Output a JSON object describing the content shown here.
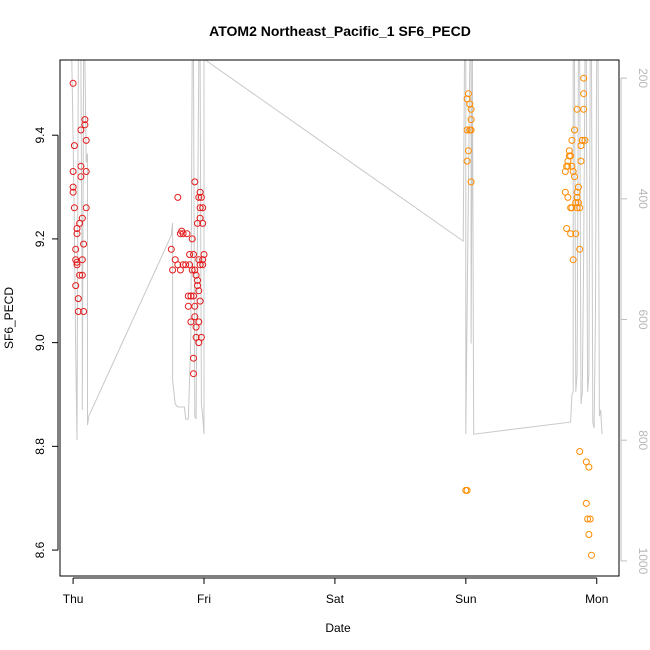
{
  "chart_data": {
    "type": "scatter",
    "title": "ATOM2 Northeast_Pacific_1 SF6_PECD",
    "xlabel": "Date",
    "ylabel": "SF6_PECD",
    "x_ticks": [
      "Thu",
      "Fri",
      "Sat",
      "Sun",
      "Mon"
    ],
    "xlim": [
      -0.1,
      4.17
    ],
    "ylim": [
      8.55,
      9.545
    ],
    "y_ticks": [
      8.6,
      8.8,
      9.0,
      9.2,
      9.4
    ],
    "y_tick_labels": [
      "8.6",
      "8.8",
      "9.0",
      "9.2",
      "9.4"
    ],
    "y2_axis": {
      "color": "#bebebe",
      "lim": [
        1025,
        170
      ],
      "ticks": [
        200,
        400,
        600,
        800,
        1000
      ],
      "tick_labels": [
        "200",
        "400",
        "600",
        "800",
        "1000"
      ]
    },
    "colors": {
      "series1": "#e31a1c",
      "series2": "#ff8c00",
      "line": "#c8c8c8"
    },
    "series": [
      {
        "values": [
          [
            0.0,
            9.5
          ],
          [
            0.0,
            9.33
          ],
          [
            0.0,
            9.3
          ],
          [
            0.0,
            9.29
          ],
          [
            0.01,
            9.38
          ],
          [
            0.01,
            9.26
          ],
          [
            0.02,
            9.18
          ],
          [
            0.02,
            9.16
          ],
          [
            0.03,
            9.155
          ],
          [
            0.03,
            9.15
          ],
          [
            0.02,
            9.11
          ],
          [
            0.03,
            9.22
          ],
          [
            0.03,
            9.21
          ],
          [
            0.04,
            9.085
          ],
          [
            0.04,
            9.06
          ],
          [
            0.05,
            9.13
          ],
          [
            0.05,
            9.23
          ],
          [
            0.06,
            9.32
          ],
          [
            0.06,
            9.34
          ],
          [
            0.06,
            9.41
          ],
          [
            0.07,
            9.16
          ],
          [
            0.07,
            9.13
          ],
          [
            0.07,
            9.24
          ],
          [
            0.08,
            9.19
          ],
          [
            0.08,
            9.06
          ],
          [
            0.09,
            9.43
          ],
          [
            0.09,
            9.42
          ],
          [
            0.1,
            9.39
          ],
          [
            0.1,
            9.33
          ],
          [
            0.1,
            9.26
          ],
          [
            0.75,
            9.18
          ],
          [
            0.76,
            9.14
          ],
          [
            0.78,
            9.16
          ],
          [
            0.8,
            9.28
          ],
          [
            0.8,
            9.15
          ],
          [
            0.82,
            9.21
          ],
          [
            0.82,
            9.14
          ],
          [
            0.83,
            9.215
          ],
          [
            0.84,
            9.21
          ],
          [
            0.84,
            9.15
          ],
          [
            0.86,
            9.15
          ],
          [
            0.87,
            9.21
          ],
          [
            0.88,
            9.09
          ],
          [
            0.88,
            9.07
          ],
          [
            0.89,
            9.17
          ],
          [
            0.89,
            9.15
          ],
          [
            0.9,
            9.09
          ],
          [
            0.9,
            9.04
          ],
          [
            0.91,
            9.2
          ],
          [
            0.91,
            9.14
          ],
          [
            0.92,
            9.17
          ],
          [
            0.92,
            9.09
          ],
          [
            0.92,
            8.97
          ],
          [
            0.92,
            8.94
          ],
          [
            0.93,
            9.31
          ],
          [
            0.93,
            9.14
          ],
          [
            0.93,
            9.07
          ],
          [
            0.93,
            9.05
          ],
          [
            0.94,
            9.13
          ],
          [
            0.94,
            9.03
          ],
          [
            0.94,
            9.01
          ],
          [
            0.95,
            9.23
          ],
          [
            0.95,
            9.12
          ],
          [
            0.95,
            9.11
          ],
          [
            0.96,
            9.28
          ],
          [
            0.96,
            9.16
          ],
          [
            0.96,
            9.1
          ],
          [
            0.96,
            9.04
          ],
          [
            0.96,
            9.0
          ],
          [
            0.97,
            9.29
          ],
          [
            0.97,
            9.26
          ],
          [
            0.97,
            9.24
          ],
          [
            0.97,
            9.15
          ],
          [
            0.97,
            9.08
          ],
          [
            0.98,
            9.28
          ],
          [
            0.98,
            9.01
          ],
          [
            0.99,
            9.26
          ],
          [
            0.99,
            9.23
          ],
          [
            0.99,
            9.16
          ],
          [
            0.99,
            9.15
          ],
          [
            1.0,
            9.17
          ]
        ]
      },
      {
        "values": [
          [
            3.0,
            8.715
          ],
          [
            3.01,
            8.715
          ],
          [
            3.01,
            9.47
          ],
          [
            3.01,
            9.41
          ],
          [
            3.01,
            9.35
          ],
          [
            3.02,
            9.48
          ],
          [
            3.02,
            9.37
          ],
          [
            3.03,
            9.46
          ],
          [
            3.03,
            9.41
          ],
          [
            3.04,
            9.45
          ],
          [
            3.04,
            9.43
          ],
          [
            3.04,
            9.41
          ],
          [
            3.04,
            9.31
          ],
          [
            3.76,
            9.29
          ],
          [
            3.76,
            9.33
          ],
          [
            3.77,
            9.34
          ],
          [
            3.77,
            9.22
          ],
          [
            3.78,
            9.34
          ],
          [
            3.78,
            9.28
          ],
          [
            3.78,
            9.35
          ],
          [
            3.79,
            9.36
          ],
          [
            3.79,
            9.37
          ],
          [
            3.8,
            9.36
          ],
          [
            3.8,
            9.26
          ],
          [
            3.8,
            9.21
          ],
          [
            3.81,
            9.34
          ],
          [
            3.81,
            9.39
          ],
          [
            3.81,
            9.26
          ],
          [
            3.82,
            9.33
          ],
          [
            3.82,
            9.16
          ],
          [
            3.83,
            9.41
          ],
          [
            3.83,
            9.32
          ],
          [
            3.84,
            9.27
          ],
          [
            3.84,
            9.27
          ],
          [
            3.84,
            9.21
          ],
          [
            3.85,
            9.29
          ],
          [
            3.85,
            9.28
          ],
          [
            3.85,
            9.26
          ],
          [
            3.85,
            9.45
          ],
          [
            3.86,
            9.3
          ],
          [
            3.86,
            9.27
          ],
          [
            3.87,
            9.26
          ],
          [
            3.87,
            9.18
          ],
          [
            3.87,
            8.79
          ],
          [
            3.88,
            9.35
          ],
          [
            3.88,
            9.38
          ],
          [
            3.89,
            9.39
          ],
          [
            3.89,
            9.39
          ],
          [
            3.9,
            9.45
          ],
          [
            3.9,
            9.51
          ],
          [
            3.9,
            9.48
          ],
          [
            3.91,
            9.39
          ],
          [
            3.92,
            8.77
          ],
          [
            3.92,
            8.69
          ],
          [
            3.93,
            8.66
          ],
          [
            3.94,
            8.76
          ],
          [
            3.94,
            8.63
          ],
          [
            3.95,
            8.66
          ],
          [
            3.96,
            8.59
          ]
        ]
      }
    ],
    "line_y2": [
      [
        -0.01,
        150
      ],
      [
        0.0,
        300
      ],
      [
        0.01,
        450
      ],
      [
        0.02,
        650
      ],
      [
        0.03,
        800
      ],
      [
        0.04,
        150
      ],
      [
        0.06,
        150
      ],
      [
        0.07,
        620
      ],
      [
        0.07,
        750
      ],
      [
        0.08,
        150
      ],
      [
        0.09,
        150
      ],
      [
        0.1,
        340
      ],
      [
        0.11,
        325
      ],
      [
        0.11,
        775
      ],
      [
        0.12,
        760
      ],
      [
        0.73,
        470
      ],
      [
        0.75,
        460
      ],
      [
        0.76,
        440
      ],
      [
        0.76,
        700
      ],
      [
        0.78,
        740
      ],
      [
        0.8,
        745
      ],
      [
        0.85,
        745
      ],
      [
        0.86,
        765
      ],
      [
        0.88,
        765
      ],
      [
        0.89,
        700
      ],
      [
        0.9,
        620
      ],
      [
        0.91,
        150
      ],
      [
        0.92,
        150
      ],
      [
        0.93,
        760
      ],
      [
        0.94,
        765
      ],
      [
        0.96,
        150
      ],
      [
        0.97,
        150
      ],
      [
        0.98,
        740
      ],
      [
        0.99,
        760
      ],
      [
        1.0,
        790
      ],
      [
        1.0,
        150
      ],
      [
        1.01,
        150
      ],
      [
        2.98,
        470
      ],
      [
        2.99,
        150
      ],
      [
        3.0,
        150
      ],
      [
        3.0,
        790
      ],
      [
        3.0,
        790
      ],
      [
        3.03,
        150
      ],
      [
        3.04,
        150
      ],
      [
        3.04,
        640
      ],
      [
        3.05,
        150
      ],
      [
        3.06,
        790
      ],
      [
        3.8,
        770
      ],
      [
        3.81,
        725
      ],
      [
        3.82,
        720
      ],
      [
        3.82,
        150
      ],
      [
        3.83,
        150
      ],
      [
        3.84,
        720
      ],
      [
        3.85,
        690
      ],
      [
        3.86,
        150
      ],
      [
        3.87,
        150
      ],
      [
        3.88,
        740
      ],
      [
        3.89,
        720
      ],
      [
        3.9,
        490
      ],
      [
        3.91,
        150
      ],
      [
        3.92,
        150
      ],
      [
        3.93,
        720
      ],
      [
        3.94,
        690
      ],
      [
        3.95,
        150
      ],
      [
        3.96,
        150
      ],
      [
        3.97,
        770
      ],
      [
        3.98,
        780
      ],
      [
        3.99,
        600
      ],
      [
        4.0,
        150
      ],
      [
        4.01,
        150
      ],
      [
        4.02,
        760
      ],
      [
        4.02,
        760
      ],
      [
        4.03,
        750
      ],
      [
        4.04,
        790
      ]
    ],
    "grid": false,
    "legend": "none"
  }
}
